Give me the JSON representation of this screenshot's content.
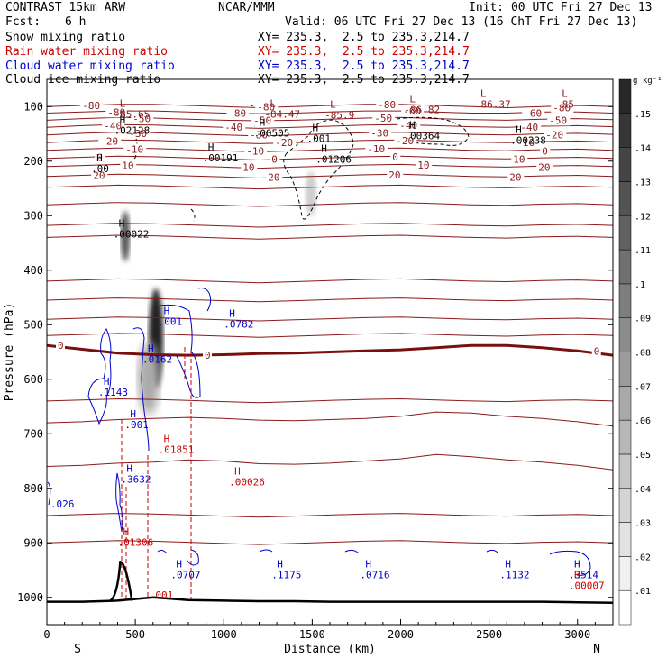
{
  "header": {
    "model": "CONTRAST 15km ARW",
    "center": "NCAR/MMM",
    "init": "Init: 00 UTC Fri 27 Dec 13",
    "fcst_label": "Fcst:",
    "fcst_value": "6 h",
    "valid": "Valid: 06 UTC Fri 27 Dec 13 (16 ChT Fri 27 Dec 13)"
  },
  "fields": [
    {
      "name": "Snow mixing ratio",
      "xy": "XY= 235.3,  2.5 to 235.3,214.7",
      "color": "#000000"
    },
    {
      "name": "Rain water mixing ratio",
      "xy": "XY= 235.3,  2.5 to 235.3,214.7",
      "color": "#cc0000"
    },
    {
      "name": "Cloud water mixing ratio",
      "xy": "XY= 235.3,  2.5 to 235.3,214.7",
      "color": "#0000cc"
    },
    {
      "name": "Cloud ice mixing ratio",
      "xy": "XY= 235.3,  2.5 to 235.3,214.7",
      "color": "#000000"
    }
  ],
  "chart_data": {
    "type": "cross-section",
    "xlabel": "Distance (km)",
    "ylabel": "Pressure (hPa)",
    "xlim": [
      0,
      3200
    ],
    "ylim": [
      1050,
      50
    ],
    "x_ticks": [
      0,
      500,
      1000,
      1500,
      2000,
      2500,
      3000
    ],
    "y_ticks": [
      100,
      200,
      300,
      400,
      500,
      600,
      700,
      800,
      900,
      1000
    ],
    "end_labels": {
      "left": "S",
      "right": "N"
    },
    "colorbar": {
      "unit": "g kg⁻¹",
      "ticks": [
        ".01",
        ".02",
        ".03",
        ".04",
        ".05",
        ".06",
        ".07",
        ".08",
        ".09",
        ".1",
        ".11",
        ".12",
        ".13",
        ".14",
        ".15"
      ]
    },
    "temperature_labels": [
      "-80",
      "-80",
      "-80",
      "-80",
      "-80",
      "-80",
      "-60",
      "-60",
      "-50",
      "-50",
      "-50",
      "-50",
      "-40",
      "-40",
      "-40",
      "-40",
      "-30",
      "-30",
      "-30",
      "-20",
      "-20",
      "-20",
      "-20",
      "-10",
      "-10",
      "-10",
      "-10",
      "0",
      "0",
      "0",
      "0",
      "10",
      "10",
      "10",
      "10",
      "20",
      "20",
      "20",
      "20",
      "20"
    ],
    "extrema": [
      {
        "type": "L",
        "value": "-85.65",
        "x": 380,
        "p": 120,
        "color": "#8b1a1a"
      },
      {
        "type": "L",
        "value": "-84.47",
        "x": 1230,
        "p": 120,
        "color": "#8b1a1a"
      },
      {
        "type": "L",
        "value": "-85.9",
        "x": 1570,
        "p": 122,
        "color": "#8b1a1a"
      },
      {
        "type": "L",
        "value": "-86.82",
        "x": 2020,
        "p": 112,
        "color": "#8b1a1a"
      },
      {
        "type": "L",
        "value": "-86.37",
        "x": 2420,
        "p": 102,
        "color": "#8b1a1a"
      },
      {
        "type": "L",
        "value": "-85",
        "x": 2880,
        "p": 102,
        "color": "#8b1a1a"
      },
      {
        "type": "H",
        "value": ".02128",
        "x": 380,
        "p": 150,
        "color": "#000000"
      },
      {
        "type": "H",
        "value": ".00505",
        "x": 1170,
        "p": 155,
        "color": "#000000"
      },
      {
        "type": "H",
        "value": ".001",
        "x": 1470,
        "p": 165,
        "color": "#000000"
      },
      {
        "type": "H",
        "value": ".00364",
        "x": 2020,
        "p": 160,
        "color": "#000000"
      },
      {
        "type": "H",
        "value": ".00238",
        "x": 2620,
        "p": 168,
        "color": "#000000"
      },
      {
        "type": "H",
        "value": ".00191",
        "x": 880,
        "p": 200,
        "color": "#000000"
      },
      {
        "type": "H",
        "value": ".01206",
        "x": 1520,
        "p": 203,
        "color": "#000000"
      },
      {
        "type": "H",
        "value": ".00",
        "x": 250,
        "p": 220,
        "color": "#000000"
      },
      {
        "type": "H",
        "value": ".00022",
        "x": 375,
        "p": 340,
        "color": "#000000"
      },
      {
        "type": "H",
        "value": ".001",
        "x": 630,
        "p": 500,
        "color": "#0000cc"
      },
      {
        "type": "H",
        "value": ".0782",
        "x": 1000,
        "p": 505,
        "color": "#0000cc"
      },
      {
        "type": "H",
        "value": ".0162",
        "x": 540,
        "p": 570,
        "color": "#0000cc"
      },
      {
        "type": "H",
        "value": ".1143",
        "x": 290,
        "p": 630,
        "color": "#0000cc"
      },
      {
        "type": "H",
        "value": ".001",
        "x": 440,
        "p": 690,
        "color": "#0000cc"
      },
      {
        "type": "H",
        "value": ".01851",
        "x": 630,
        "p": 735,
        "color": "#cc0000"
      },
      {
        "type": "H",
        "value": ".3632",
        "x": 420,
        "p": 790,
        "color": "#0000cc"
      },
      {
        "type": "H",
        "value": ".00026",
        "x": 1030,
        "p": 795,
        "color": "#cc0000"
      },
      {
        "type": "H",
        "value": ".01306",
        "x": 400,
        "p": 905,
        "color": "#cc0000"
      },
      {
        "type": "H",
        "value": ".0707",
        "x": 700,
        "p": 965,
        "color": "#0000cc"
      },
      {
        "type": "H",
        "value": ".1175",
        "x": 1270,
        "p": 965,
        "color": "#0000cc"
      },
      {
        "type": "H",
        "value": ".0716",
        "x": 1770,
        "p": 965,
        "color": "#0000cc"
      },
      {
        "type": "H",
        "value": ".1132",
        "x": 2560,
        "p": 965,
        "color": "#0000cc"
      },
      {
        "type": "H",
        "value": ".3514",
        "x": 2950,
        "p": 965,
        "color": "#0000cc"
      },
      {
        "type": "H",
        "value": ".00007",
        "x": 2950,
        "p": 985,
        "color": "#cc0000"
      },
      {
        "type": "",
        "value": ".001",
        "x": 580,
        "p": 1002,
        "color": "#cc0000"
      },
      {
        "type": "",
        "value": ".026",
        "x": 20,
        "p": 835,
        "color": "#0000cc"
      }
    ],
    "isotherms": [
      {
        "t": -80,
        "pressures": [
          100,
          98,
          96,
          96,
          98,
          100,
          102,
          100,
          98,
          96,
          96,
          98,
          100,
          102,
          100,
          98,
          100
        ]
      },
      {
        "t": -80,
        "pressures": [
          112,
          110,
          108,
          108,
          110,
          112,
          113,
          112,
          110,
          108,
          108,
          110,
          112,
          112,
          110,
          110,
          112
        ]
      },
      {
        "t": -80,
        "pressures": [
          125,
          122,
          120,
          121,
          123,
          125,
          126,
          125,
          123,
          121,
          120,
          122,
          124,
          125,
          123,
          122,
          124
        ]
      },
      {
        "t": -80,
        "pressures": [
          138,
          135,
          133,
          134,
          136,
          138,
          140,
          138,
          136,
          134,
          133,
          135,
          137,
          138,
          136,
          135,
          137
        ]
      },
      {
        "t": -60,
        "pressures": [
          152,
          149,
          147,
          148,
          150,
          152,
          154,
          152,
          150,
          148,
          147,
          149,
          151,
          152,
          150,
          149,
          151
        ]
      },
      {
        "t": -60,
        "pressures": [
          166,
          163,
          161,
          162,
          164,
          166,
          168,
          166,
          164,
          162,
          161,
          163,
          165,
          166,
          164,
          163,
          165
        ]
      },
      {
        "t": -50,
        "pressures": [
          180,
          178,
          176,
          177,
          179,
          181,
          183,
          181,
          179,
          177,
          176,
          178,
          180,
          181,
          179,
          178,
          180
        ]
      },
      {
        "t": -50,
        "pressures": [
          195,
          193,
          191,
          192,
          194,
          196,
          198,
          196,
          194,
          192,
          191,
          193,
          195,
          196,
          194,
          193,
          195
        ]
      },
      {
        "t": -40,
        "pressures": [
          210,
          208,
          206,
          207,
          209,
          211,
          213,
          211,
          209,
          207,
          206,
          208,
          210,
          211,
          209,
          208,
          210
        ]
      },
      {
        "t": -40,
        "pressures": [
          228,
          226,
          224,
          225,
          227,
          229,
          231,
          229,
          227,
          225,
          224,
          226,
          228,
          229,
          227,
          226,
          228
        ]
      },
      {
        "t": -30,
        "pressures": [
          248,
          246,
          244,
          245,
          247,
          249,
          251,
          249,
          247,
          245,
          244,
          246,
          248,
          249,
          247,
          246,
          248
        ]
      },
      {
        "t": -30,
        "pressures": [
          280,
          278,
          276,
          277,
          279,
          281,
          283,
          281,
          279,
          277,
          276,
          278,
          280,
          281,
          279,
          278,
          280
        ]
      },
      {
        "t": -20,
        "pressures": [
          318,
          316,
          314,
          315,
          317,
          319,
          321,
          319,
          317,
          315,
          314,
          316,
          318,
          319,
          317,
          316,
          318
        ]
      },
      {
        "t": -20,
        "pressures": [
          340,
          338,
          336,
          337,
          339,
          341,
          343,
          341,
          339,
          337,
          336,
          338,
          340,
          341,
          339,
          338,
          340
        ]
      },
      {
        "t": -10,
        "pressures": [
          420,
          418,
          416,
          417,
          419,
          421,
          423,
          421,
          419,
          417,
          416,
          418,
          420,
          421,
          419,
          418,
          420
        ]
      },
      {
        "t": -10,
        "pressures": [
          455,
          453,
          451,
          452,
          454,
          456,
          458,
          456,
          454,
          452,
          451,
          453,
          455,
          456,
          454,
          453,
          455
        ]
      },
      {
        "t": -10,
        "pressures": [
          490,
          488,
          486,
          487,
          489,
          491,
          493,
          491,
          489,
          487,
          486,
          488,
          490,
          491,
          489,
          488,
          490
        ]
      },
      {
        "t": 0,
        "pressures": [
          520,
          518,
          516,
          517,
          519,
          521,
          523,
          521,
          519,
          517,
          516,
          518,
          520,
          521,
          519,
          518,
          520
        ]
      },
      {
        "t": 10,
        "pressures": [
          640,
          638,
          636,
          637,
          639,
          641,
          643,
          641,
          639,
          637,
          636,
          638,
          640,
          641,
          639,
          638,
          640
        ]
      },
      {
        "t": 10,
        "pressures": [
          680,
          678,
          674,
          672,
          670,
          672,
          675,
          676,
          674,
          672,
          668,
          660,
          662,
          668,
          672,
          678,
          686
        ]
      },
      {
        "t": 20,
        "pressures": [
          760,
          758,
          754,
          752,
          748,
          750,
          755,
          756,
          754,
          750,
          746,
          738,
          742,
          748,
          752,
          758,
          766
        ]
      },
      {
        "t": 20,
        "pressures": [
          850,
          848,
          846,
          847,
          849,
          851,
          853,
          851,
          849,
          847,
          846,
          848,
          850,
          851,
          849,
          848,
          850
        ]
      },
      {
        "t": 20,
        "pressures": [
          900,
          898,
          896,
          897,
          899,
          901,
          903,
          901,
          899,
          897,
          896,
          898,
          900,
          901,
          899,
          898,
          900
        ]
      }
    ],
    "thick_zero_isotherm": {
      "t": 0,
      "pressures": [
        538,
        545,
        552,
        555,
        556,
        555,
        553,
        552,
        550,
        548,
        546,
        542,
        538,
        538,
        542,
        548,
        556
      ]
    },
    "terrain_pressure": [
      1008,
      1008,
      1006,
      1000,
      1005,
      1006,
      1007,
      1007,
      1008,
      1008,
      1008,
      1008,
      1008,
      1008,
      1008,
      1009,
      1010
    ],
    "terrain_peak": {
      "x": 430,
      "p": 935
    }
  }
}
